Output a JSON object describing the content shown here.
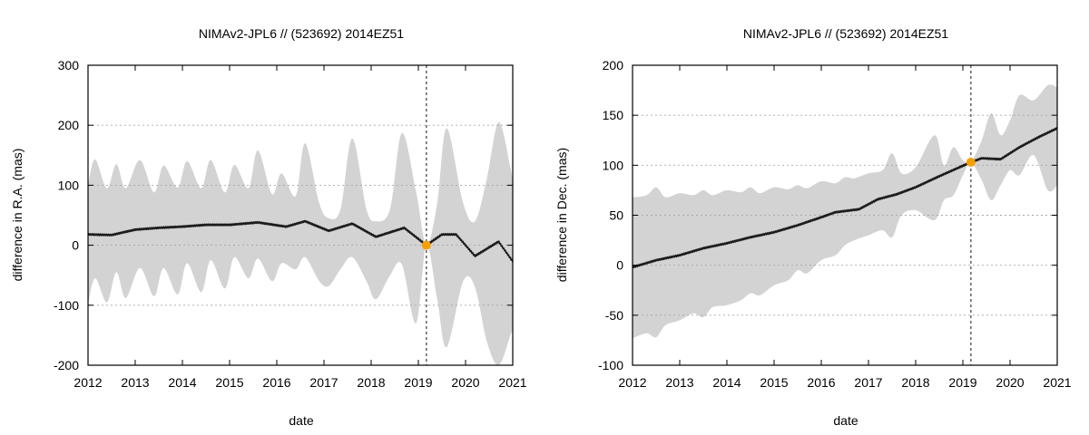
{
  "chart_data": [
    {
      "type": "line",
      "title": "NIMAv2-JPL6 // (523692) 2014EZ51",
      "xlabel": "date",
      "ylabel": "difference in R.A. (mas)",
      "xlim": [
        2012,
        2021
      ],
      "ylim": [
        -200,
        300
      ],
      "xticks": [
        2012,
        2013,
        2014,
        2015,
        2016,
        2017,
        2018,
        2019,
        2020,
        2021
      ],
      "yticks": [
        -200,
        -100,
        0,
        100,
        200,
        300
      ],
      "grid": "horizontal-dotted",
      "marker_date": 2019.17,
      "marker_value": 0,
      "marker_color": "#f5a000",
      "band_color": "#d3d3d3",
      "line_color": "#1a1a1a",
      "series": [
        {
          "name": "mean",
          "x": [
            2012.0,
            2012.5,
            2013.0,
            2013.5,
            2014.0,
            2014.5,
            2015.0,
            2015.6,
            2016.2,
            2016.6,
            2017.1,
            2017.6,
            2018.1,
            2018.7,
            2019.17,
            2019.5,
            2019.8,
            2020.2,
            2020.7,
            2021.0
          ],
          "y": [
            18,
            17,
            26,
            29,
            31,
            34,
            34,
            38,
            31,
            40,
            24,
            36,
            14,
            29,
            0,
            18,
            18,
            -18,
            6,
            -27
          ]
        },
        {
          "name": "upper",
          "x": [
            2012.0,
            2012.15,
            2012.4,
            2012.6,
            2012.8,
            2013.1,
            2013.4,
            2013.6,
            2013.9,
            2014.1,
            2014.4,
            2014.6,
            2014.9,
            2015.1,
            2015.4,
            2015.6,
            2015.9,
            2016.1,
            2016.4,
            2016.6,
            2016.9,
            2017.1,
            2017.35,
            2017.6,
            2017.9,
            2018.1,
            2018.4,
            2018.65,
            2018.95,
            2019.17,
            2019.4,
            2019.6,
            2019.95,
            2020.2,
            2020.45,
            2020.7,
            2020.95,
            2021.0
          ],
          "y": [
            100,
            143,
            95,
            135,
            95,
            142,
            88,
            133,
            96,
            140,
            95,
            142,
            88,
            134,
            95,
            158,
            85,
            120,
            82,
            170,
            70,
            45,
            60,
            178,
            60,
            40,
            60,
            187,
            90,
            0,
            70,
            195,
            70,
            40,
            110,
            205,
            130,
            100
          ]
        },
        {
          "name": "lower",
          "x": [
            2012.0,
            2012.15,
            2012.4,
            2012.6,
            2012.8,
            2013.1,
            2013.4,
            2013.6,
            2013.9,
            2014.1,
            2014.4,
            2014.6,
            2014.9,
            2015.1,
            2015.4,
            2015.6,
            2015.9,
            2016.1,
            2016.4,
            2016.6,
            2016.9,
            2017.1,
            2017.35,
            2017.6,
            2017.9,
            2018.1,
            2018.4,
            2018.65,
            2018.95,
            2019.17,
            2019.4,
            2019.6,
            2019.95,
            2020.2,
            2020.45,
            2020.7,
            2020.95,
            2021.0
          ],
          "y": [
            -100,
            -55,
            -95,
            -45,
            -88,
            -38,
            -85,
            -38,
            -82,
            -30,
            -78,
            -25,
            -72,
            -20,
            -55,
            -22,
            -60,
            -30,
            -40,
            -20,
            -60,
            -68,
            -40,
            -20,
            -60,
            -90,
            -50,
            -32,
            -130,
            0,
            -90,
            -170,
            -60,
            -70,
            -160,
            -200,
            -150,
            -140
          ]
        }
      ]
    },
    {
      "type": "line",
      "title": "NIMAv2-JPL6 // (523692) 2014EZ51",
      "xlabel": "date",
      "ylabel": "difference in Dec. (mas)",
      "xlim": [
        2012,
        2021
      ],
      "ylim": [
        -100,
        200
      ],
      "xticks": [
        2012,
        2013,
        2014,
        2015,
        2016,
        2017,
        2018,
        2019,
        2020,
        2021
      ],
      "yticks": [
        -100,
        -50,
        0,
        50,
        100,
        150,
        200
      ],
      "grid": "horizontal-dotted",
      "marker_date": 2019.17,
      "marker_value": 103,
      "marker_color": "#f5a000",
      "band_color": "#d3d3d3",
      "line_color": "#1a1a1a",
      "series": [
        {
          "name": "mean",
          "x": [
            2012.0,
            2012.5,
            2013.0,
            2013.5,
            2014.0,
            2014.5,
            2015.0,
            2015.5,
            2016.0,
            2016.3,
            2016.8,
            2017.2,
            2017.6,
            2018.0,
            2018.5,
            2019.17,
            2019.4,
            2019.8,
            2020.2,
            2020.6,
            2021.0
          ],
          "y": [
            -2,
            5,
            10,
            17,
            22,
            28,
            33,
            40,
            48,
            53,
            56,
            66,
            71,
            78,
            89,
            103,
            107,
            106,
            118,
            128,
            137
          ]
        },
        {
          "name": "upper",
          "x": [
            2012.0,
            2012.3,
            2012.5,
            2012.7,
            2013.0,
            2013.3,
            2013.5,
            2013.7,
            2014.0,
            2014.3,
            2014.5,
            2014.7,
            2015.0,
            2015.3,
            2015.5,
            2015.7,
            2016.0,
            2016.3,
            2016.5,
            2016.7,
            2017.0,
            2017.3,
            2017.5,
            2017.7,
            2018.0,
            2018.4,
            2018.6,
            2018.8,
            2019.0,
            2019.17,
            2019.4,
            2019.6,
            2019.8,
            2020.0,
            2020.2,
            2020.5,
            2020.8,
            2021.0
          ],
          "y": [
            68,
            70,
            78,
            68,
            72,
            70,
            75,
            70,
            75,
            73,
            78,
            72,
            78,
            76,
            80,
            77,
            84,
            82,
            88,
            87,
            92,
            95,
            112,
            92,
            98,
            130,
            100,
            118,
            105,
            103,
            125,
            152,
            130,
            145,
            170,
            165,
            180,
            178
          ]
        },
        {
          "name": "lower",
          "x": [
            2012.0,
            2012.3,
            2012.5,
            2012.7,
            2013.0,
            2013.3,
            2013.5,
            2013.7,
            2014.0,
            2014.3,
            2014.5,
            2014.7,
            2015.0,
            2015.3,
            2015.5,
            2015.7,
            2016.0,
            2016.3,
            2016.5,
            2016.7,
            2017.0,
            2017.3,
            2017.5,
            2017.7,
            2018.0,
            2018.4,
            2018.6,
            2018.8,
            2019.0,
            2019.17,
            2019.4,
            2019.6,
            2019.8,
            2020.0,
            2020.2,
            2020.5,
            2020.8,
            2021.0
          ],
          "y": [
            -73,
            -68,
            -72,
            -60,
            -55,
            -48,
            -52,
            -42,
            -40,
            -35,
            -28,
            -30,
            -20,
            -15,
            -5,
            -8,
            5,
            10,
            20,
            25,
            30,
            35,
            28,
            50,
            55,
            45,
            65,
            70,
            90,
            103,
            85,
            65,
            80,
            95,
            90,
            110,
            75,
            80
          ]
        }
      ]
    }
  ]
}
